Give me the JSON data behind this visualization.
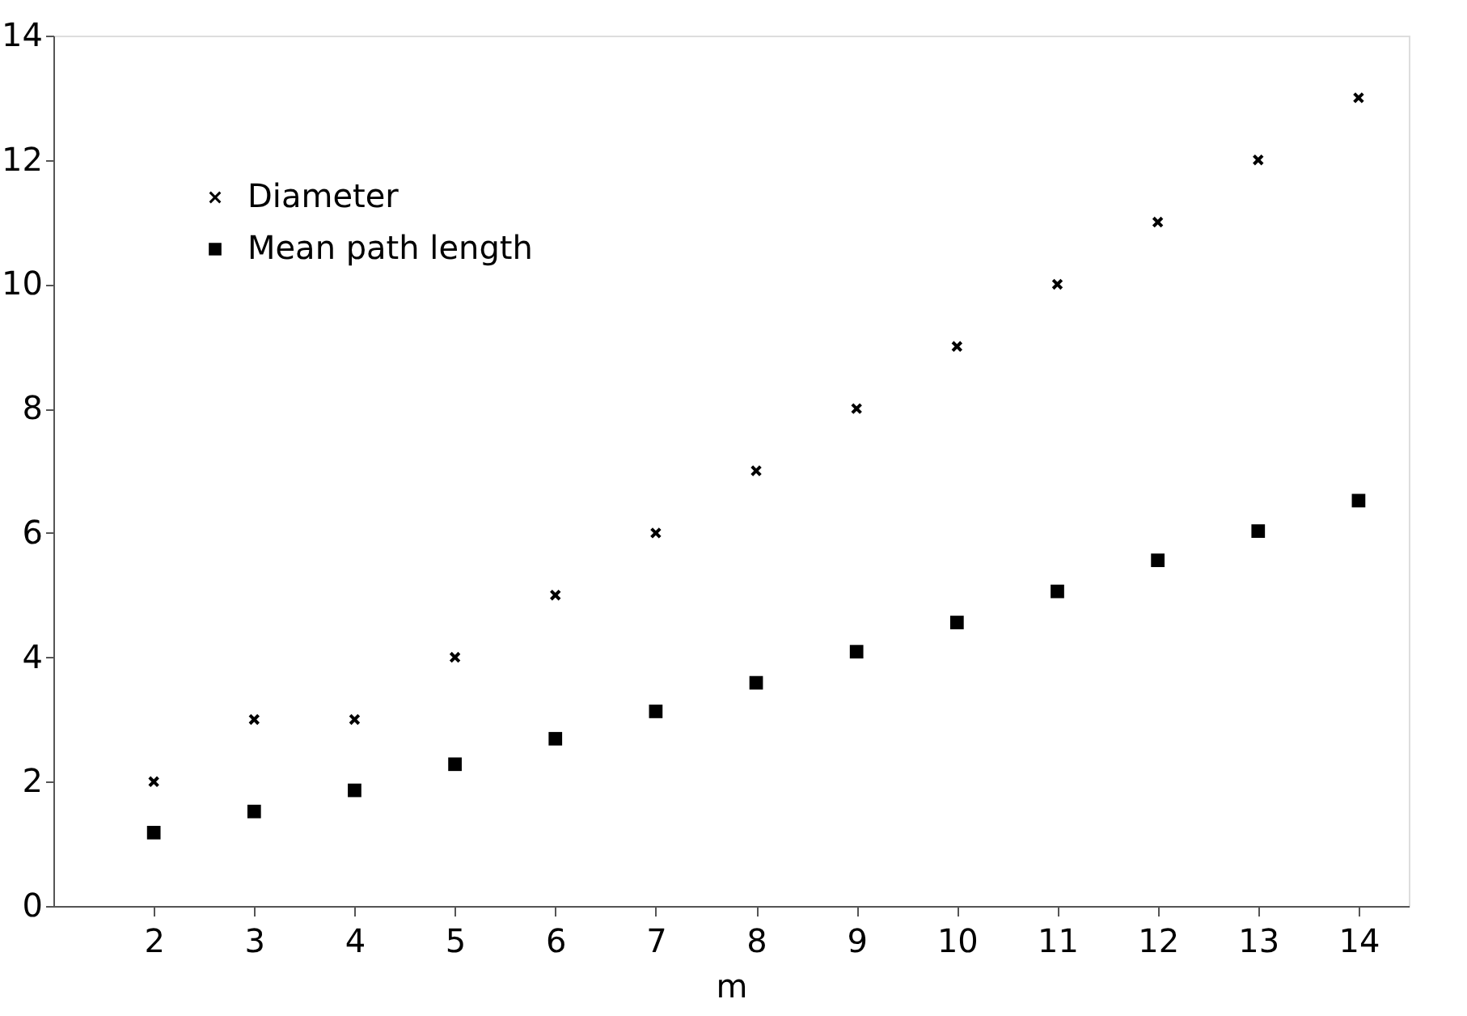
{
  "chart_data": {
    "type": "scatter",
    "xlabel": "m",
    "xlim": [
      1,
      14.5
    ],
    "xticks": [
      2,
      3,
      4,
      5,
      6,
      7,
      8,
      9,
      10,
      11,
      12,
      13,
      14
    ],
    "ylim": [
      0,
      14
    ],
    "yticks": [
      0,
      2,
      4,
      6,
      8,
      10,
      12,
      14
    ],
    "grid": false,
    "legend": "top left",
    "x": [
      2,
      3,
      4,
      5,
      6,
      7,
      8,
      9,
      10,
      11,
      12,
      13,
      14
    ],
    "series": [
      {
        "name": "Diameter",
        "color": "#000000",
        "marker": "cross",
        "values": [
          2,
          3,
          3,
          4,
          5,
          6,
          7,
          8,
          9,
          10,
          11,
          12,
          13
        ]
      },
      {
        "name": "Mean path length",
        "color": "#000000",
        "marker": "square",
        "values": [
          1.18,
          1.52,
          1.86,
          2.28,
          2.69,
          3.13,
          3.59,
          4.09,
          4.56,
          5.06,
          5.56,
          6.03,
          6.52
        ]
      }
    ]
  }
}
